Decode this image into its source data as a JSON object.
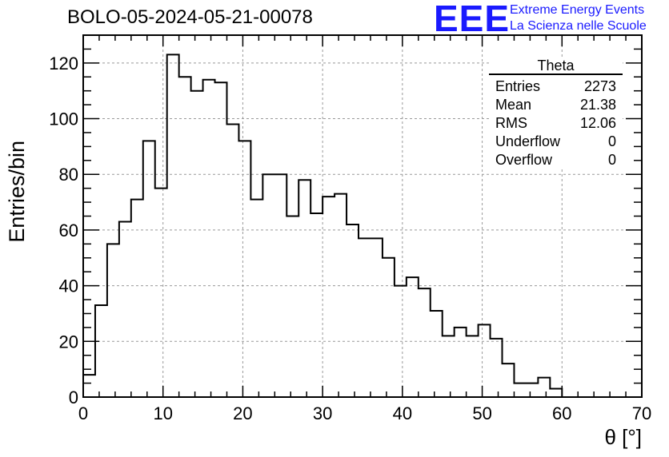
{
  "title": "BOLO-05-2024-05-21-00078",
  "logo": {
    "mark": "EEE",
    "line1": "Extreme Energy Events",
    "line2": "La Scienza nelle Scuole",
    "color": "#1a1aff"
  },
  "stats": {
    "title": "Theta",
    "rows": [
      {
        "label": "Entries",
        "value": "2273"
      },
      {
        "label": "Mean",
        "value": "21.38"
      },
      {
        "label": "RMS",
        "value": "12.06"
      },
      {
        "label": "Underflow",
        "value": "0"
      },
      {
        "label": "Overflow",
        "value": "0"
      }
    ]
  },
  "chart_data": {
    "type": "histogram",
    "title": "BOLO-05-2024-05-21-00078",
    "xlabel": "θ [°]",
    "ylabel": "Entries/bin",
    "xlim": [
      0,
      70
    ],
    "ylim": [
      0,
      130
    ],
    "bin_width": 1.5,
    "bin_start": 0,
    "xticks": [
      0,
      10,
      20,
      30,
      40,
      50,
      60,
      70
    ],
    "yticks": [
      0,
      20,
      40,
      60,
      80,
      100,
      120
    ],
    "grid": true,
    "line_color": "#000000",
    "values": [
      8,
      33,
      55,
      63,
      71,
      92,
      75,
      123,
      115,
      110,
      114,
      113,
      98,
      92,
      71,
      80,
      80,
      65,
      78,
      66,
      72,
      73,
      62,
      57,
      57,
      50,
      40,
      43,
      39,
      31,
      22,
      25,
      22,
      26,
      21,
      12,
      5,
      5,
      7,
      3,
      0,
      0,
      0,
      0,
      0,
      0
    ]
  }
}
